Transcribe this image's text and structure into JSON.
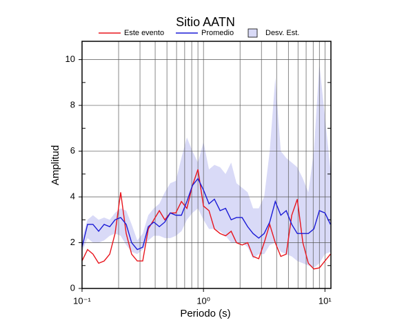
{
  "chart_data": {
    "type": "line",
    "title": "Sitio AATN",
    "xlabel": "Periodo (s)",
    "ylabel": "Amplitud",
    "xscale": "log",
    "xlim": [
      0.1,
      11.2
    ],
    "ylim": [
      0,
      10.8
    ],
    "xticks": [
      {
        "value": 0.1,
        "label": "10⁻¹"
      },
      {
        "value": 1,
        "label": "10⁰"
      },
      {
        "value": 10,
        "label": "10¹"
      }
    ],
    "xminorticks": [
      0.2,
      0.3,
      0.4,
      0.5,
      0.6,
      0.7,
      0.8,
      0.9,
      2,
      3,
      4,
      5,
      6,
      7,
      8,
      9
    ],
    "yticks": [
      0,
      2,
      4,
      6,
      8,
      10
    ],
    "yminorticks": [
      1,
      3,
      5,
      7,
      9
    ],
    "grid": true,
    "legend": "top",
    "x": [
      0.1,
      0.111,
      0.123,
      0.137,
      0.152,
      0.169,
      0.187,
      0.208,
      0.231,
      0.256,
      0.285,
      0.316,
      0.351,
      0.39,
      0.433,
      0.48,
      0.533,
      0.592,
      0.658,
      0.73,
      0.811,
      0.9,
      1.0,
      1.11,
      1.23,
      1.37,
      1.52,
      1.69,
      1.87,
      2.08,
      2.31,
      2.56,
      2.85,
      3.16,
      3.51,
      3.9,
      4.33,
      4.8,
      5.33,
      5.92,
      6.58,
      7.3,
      8.11,
      9.0,
      10.0,
      11.1
    ],
    "series": [
      {
        "name": "Este evento",
        "color": "#e8141c",
        "values": [
          1.2,
          1.7,
          1.5,
          1.1,
          1.2,
          1.5,
          2.4,
          4.2,
          2.4,
          1.5,
          1.2,
          1.2,
          2.6,
          3.0,
          3.4,
          3.0,
          3.3,
          3.3,
          3.8,
          3.5,
          4.5,
          5.2,
          3.6,
          3.4,
          2.6,
          2.4,
          2.3,
          2.5,
          2.0,
          1.9,
          2.0,
          1.4,
          1.3,
          2.0,
          2.8,
          2.0,
          1.4,
          1.5,
          3.2,
          3.9,
          2.0,
          1.1,
          0.85,
          0.9,
          1.2,
          1.5
        ]
      },
      {
        "name": "Promedio",
        "color": "#1a1ad6",
        "values": [
          1.8,
          2.8,
          2.8,
          2.5,
          2.8,
          2.7,
          3.0,
          3.1,
          2.8,
          2.0,
          1.7,
          1.8,
          2.7,
          2.9,
          2.7,
          2.9,
          3.3,
          3.2,
          3.2,
          3.8,
          4.5,
          4.8,
          4.3,
          3.7,
          3.9,
          3.4,
          3.5,
          3.0,
          3.1,
          3.1,
          2.7,
          2.4,
          2.2,
          2.4,
          2.9,
          3.8,
          3.2,
          3.4,
          2.8,
          2.4,
          2.4,
          2.4,
          2.6,
          3.4,
          3.3,
          2.8
        ]
      }
    ],
    "band": {
      "name": "Desv. Est.",
      "color": "#d9daf7",
      "lower": [
        1.6,
        2.2,
        2.0,
        2.0,
        2.1,
        2.3,
        2.4,
        2.3,
        1.9,
        1.6,
        1.5,
        1.7,
        2.1,
        2.3,
        2.3,
        2.2,
        2.2,
        2.3,
        2.5,
        3.0,
        3.3,
        3.5,
        3.0,
        2.6,
        2.6,
        2.5,
        2.3,
        2.0,
        2.0,
        2.0,
        1.8,
        1.3,
        1.5,
        1.5,
        1.9,
        2.0,
        1.6,
        1.5,
        1.4,
        1.2,
        1.1,
        1.0,
        0.9,
        1.1,
        1.5,
        1.6
      ],
      "upper": [
        2.2,
        3.0,
        3.2,
        3.0,
        3.1,
        3.0,
        3.3,
        3.5,
        3.4,
        2.8,
        2.1,
        2.4,
        3.2,
        3.5,
        3.7,
        4.2,
        4.6,
        4.7,
        5.7,
        6.6,
        6.0,
        5.5,
        6.4,
        5.2,
        5.4,
        5.3,
        5.0,
        5.5,
        4.6,
        4.4,
        4.2,
        3.5,
        3.5,
        4.0,
        6.0,
        9.2,
        6.0,
        5.7,
        5.5,
        5.3,
        4.8,
        4.2,
        6.0,
        9.8,
        7.5,
        5.2
      ]
    }
  }
}
